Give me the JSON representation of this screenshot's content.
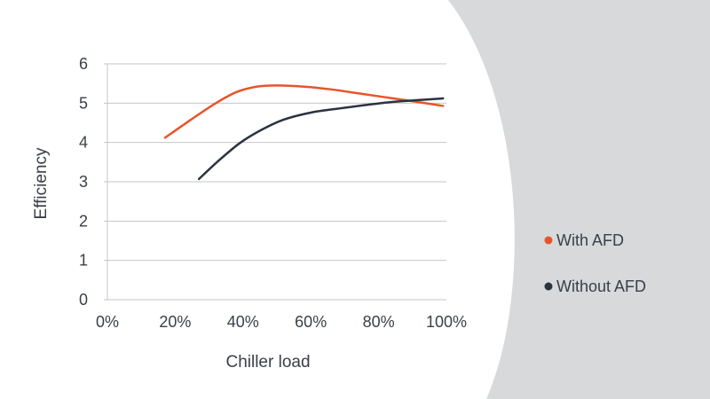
{
  "chart_data": {
    "type": "line",
    "xlabel": "Chiller load",
    "ylabel": "Efficiency",
    "xlim": [
      0,
      100
    ],
    "ylim": [
      0,
      6
    ],
    "x_ticks": [
      "0%",
      "20%",
      "40%",
      "60%",
      "80%",
      "100%"
    ],
    "y_ticks": [
      "0",
      "1",
      "2",
      "3",
      "4",
      "5",
      "6"
    ],
    "grid": "horizontal",
    "legend_position": "right",
    "series": [
      {
        "name": "With AFD",
        "color": "#e8542a",
        "points": [
          [
            17,
            4.12
          ],
          [
            25,
            4.6
          ],
          [
            32,
            5.0
          ],
          [
            38,
            5.28
          ],
          [
            44,
            5.42
          ],
          [
            50,
            5.45
          ],
          [
            58,
            5.42
          ],
          [
            66,
            5.35
          ],
          [
            74,
            5.25
          ],
          [
            82,
            5.15
          ],
          [
            90,
            5.05
          ],
          [
            99,
            4.93
          ]
        ]
      },
      {
        "name": "Without AFD",
        "color": "#2b3340",
        "points": [
          [
            27,
            3.07
          ],
          [
            33,
            3.55
          ],
          [
            39,
            3.98
          ],
          [
            45,
            4.3
          ],
          [
            52,
            4.58
          ],
          [
            60,
            4.76
          ],
          [
            68,
            4.86
          ],
          [
            76,
            4.95
          ],
          [
            84,
            5.03
          ],
          [
            92,
            5.08
          ],
          [
            99,
            5.12
          ]
        ]
      }
    ]
  }
}
